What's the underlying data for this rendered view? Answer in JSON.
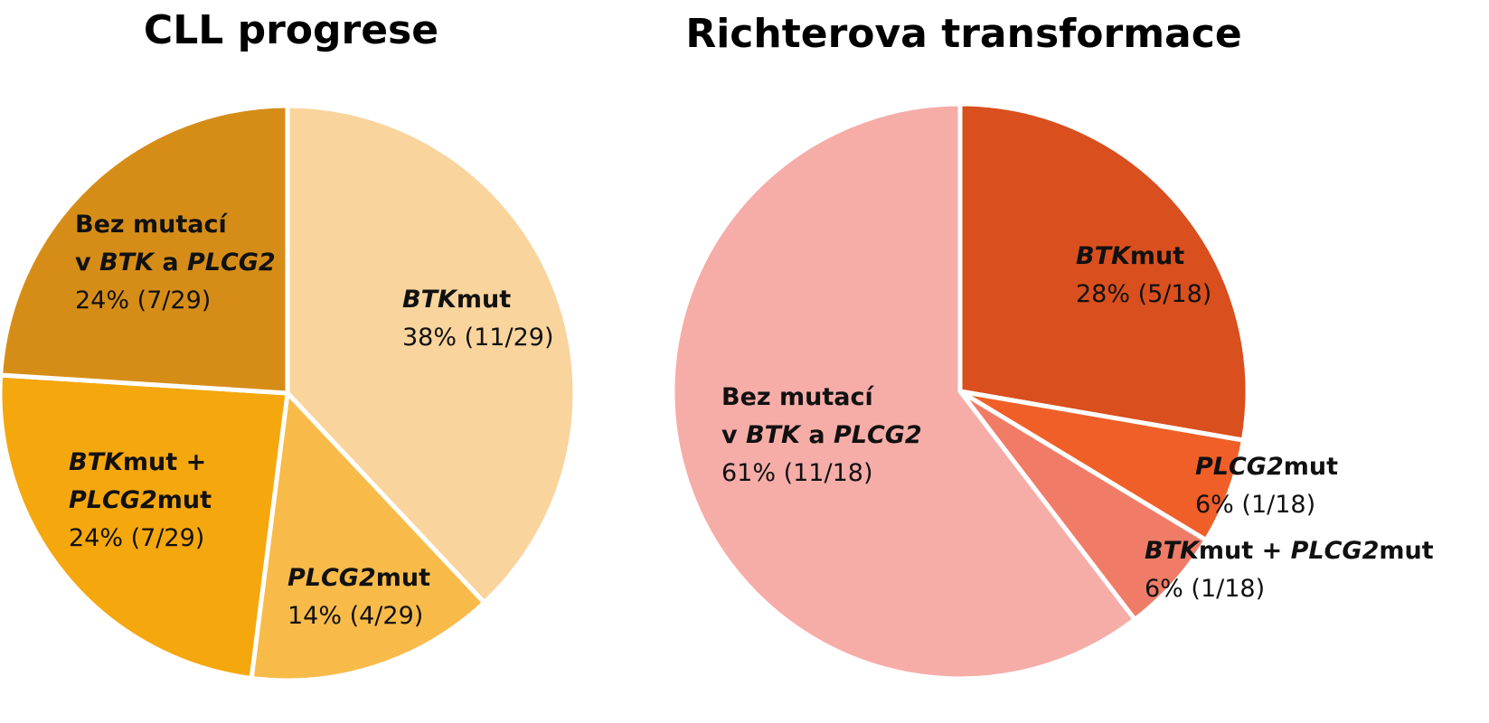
{
  "chart_data": [
    {
      "type": "pie",
      "title": "CLL progrese",
      "start_angle_deg": 0,
      "slices": [
        {
          "label": "BTKmut",
          "value": 38,
          "value_text": "38% (11/29)",
          "color": "#F9D49D",
          "label_lines": [
            [
              {
                "text": "BTK",
                "b": true,
                "i": true
              },
              {
                "text": "mut",
                "b": true
              }
            ],
            [
              {
                "text": "38% (11/29)"
              }
            ]
          ]
        },
        {
          "label": "PLCG2mut",
          "value": 14,
          "value_text": "14% (4/29)",
          "color": "#F8BB4A",
          "label_lines": [
            [
              {
                "text": "PLCG2",
                "b": true,
                "i": true
              },
              {
                "text": "mut",
                "b": true
              }
            ],
            [
              {
                "text": "14% (4/29)"
              }
            ]
          ]
        },
        {
          "label": "BTKmut + PLCG2mut",
          "value": 24,
          "value_text": "24% (7/29)",
          "color": "#F5A70E",
          "label_lines": [
            [
              {
                "text": "BTK",
                "b": true,
                "i": true
              },
              {
                "text": "mut +",
                "b": true
              }
            ],
            [
              {
                "text": "PLCG2",
                "b": true,
                "i": true
              },
              {
                "text": "mut",
                "b": true
              }
            ],
            [
              {
                "text": "24% (7/29)"
              }
            ]
          ]
        },
        {
          "label": "Bez mutací v BTK a PLCG2",
          "value": 24,
          "value_text": "24% (7/29)",
          "color": "#D68D18",
          "label_lines": [
            [
              {
                "text": "Bez mutací",
                "b": true
              }
            ],
            [
              {
                "text": "v ",
                "b": true
              },
              {
                "text": "BTK",
                "b": true,
                "i": true
              },
              {
                "text": " a ",
                "b": true
              },
              {
                "text": "PLCG2",
                "b": true,
                "i": true
              }
            ],
            [
              {
                "text": "24% (7/29)"
              }
            ]
          ]
        }
      ]
    },
    {
      "type": "pie",
      "title": "Richterova transformace",
      "start_angle_deg": 0,
      "slices": [
        {
          "label": "BTKmut",
          "value": 28,
          "value_text": "28% (5/18)",
          "color": "#D94F1E",
          "label_lines": [
            [
              {
                "text": "BTK",
                "b": true,
                "i": true
              },
              {
                "text": "mut",
                "b": true
              }
            ],
            [
              {
                "text": "28% (5/18)"
              }
            ]
          ]
        },
        {
          "label": "PLCG2mut",
          "value": 6,
          "value_text": "6% (1/18)",
          "color": "#F05F28",
          "label_lines": [
            [
              {
                "text": "PLCG2",
                "b": true,
                "i": true
              },
              {
                "text": "mut",
                "b": true
              }
            ],
            [
              {
                "text": "6% (1/18)"
              }
            ]
          ]
        },
        {
          "label": "BTKmut + PLCG2mut",
          "value": 6,
          "value_text": "6% (1/18)",
          "color": "#F07C68",
          "label_lines": [
            [
              {
                "text": "BTK",
                "b": true,
                "i": true
              },
              {
                "text": "mut + ",
                "b": true
              },
              {
                "text": "PLCG2",
                "b": true,
                "i": true
              },
              {
                "text": "mut",
                "b": true
              }
            ],
            [
              {
                "text": "6% (1/18)"
              }
            ]
          ]
        },
        {
          "label": "Bez mutací v BTK a PLCG2",
          "value": 61,
          "value_text": "61% (11/18)",
          "color": "#F6ADA8",
          "label_lines": [
            [
              {
                "text": "Bez mutací",
                "b": true
              }
            ],
            [
              {
                "text": "v ",
                "b": true
              },
              {
                "text": "BTK",
                "b": true,
                "i": true
              },
              {
                "text": " a ",
                "b": true
              },
              {
                "text": "PLCG2",
                "b": true,
                "i": true
              }
            ],
            [
              {
                "text": "61% (11/18)"
              }
            ]
          ]
        }
      ]
    }
  ]
}
